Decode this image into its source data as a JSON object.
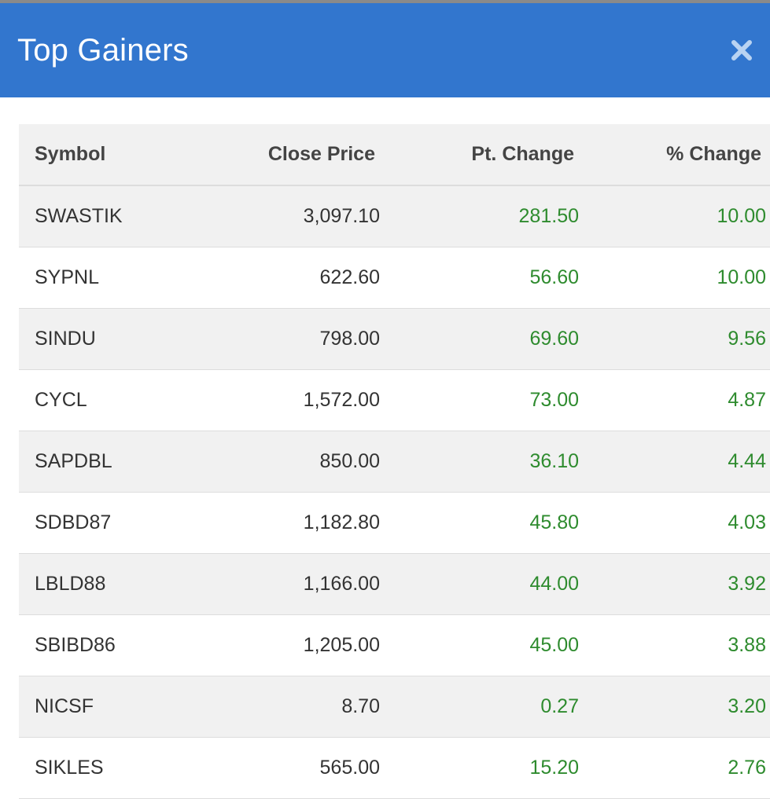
{
  "header": {
    "title": "Top Gainers",
    "close_icon": "close-icon",
    "background_color": "#3276ce"
  },
  "table": {
    "columns": [
      "Symbol",
      "Close Price",
      "Pt. Change",
      "% Change"
    ],
    "gain_color": "#2e8b2e",
    "rows": [
      {
        "symbol": "SWASTIK",
        "close_price": "3,097.10",
        "pt_change": "281.50",
        "pct_change": "10.00"
      },
      {
        "symbol": "SYPNL",
        "close_price": "622.60",
        "pt_change": "56.60",
        "pct_change": "10.00"
      },
      {
        "symbol": "SINDU",
        "close_price": "798.00",
        "pt_change": "69.60",
        "pct_change": "9.56"
      },
      {
        "symbol": "CYCL",
        "close_price": "1,572.00",
        "pt_change": "73.00",
        "pct_change": "4.87"
      },
      {
        "symbol": "SAPDBL",
        "close_price": "850.00",
        "pt_change": "36.10",
        "pct_change": "4.44"
      },
      {
        "symbol": "SDBD87",
        "close_price": "1,182.80",
        "pt_change": "45.80",
        "pct_change": "4.03"
      },
      {
        "symbol": "LBLD88",
        "close_price": "1,166.00",
        "pt_change": "44.00",
        "pct_change": "3.92"
      },
      {
        "symbol": "SBIBD86",
        "close_price": "1,205.00",
        "pt_change": "45.00",
        "pct_change": "3.88"
      },
      {
        "symbol": "NICSF",
        "close_price": "8.70",
        "pt_change": "0.27",
        "pct_change": "3.20"
      },
      {
        "symbol": "SIKLES",
        "close_price": "565.00",
        "pt_change": "15.20",
        "pct_change": "2.76"
      }
    ]
  }
}
